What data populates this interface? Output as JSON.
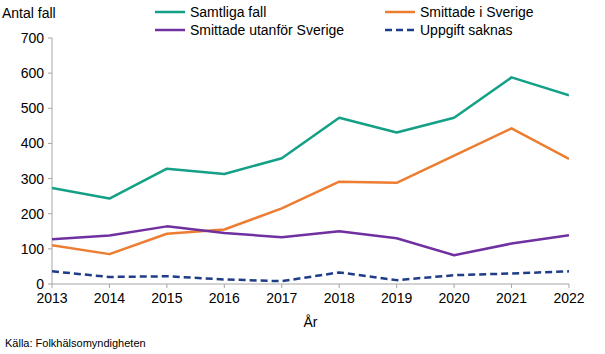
{
  "chart_data": {
    "type": "line",
    "y_label": "Antal fall",
    "x_label": "År",
    "source": "Källa: Folkhälsomyndigheten",
    "x": [
      2013,
      2014,
      2015,
      2016,
      2017,
      2018,
      2019,
      2020,
      2021,
      2022
    ],
    "xlim": [
      2013,
      2022
    ],
    "xticks": [
      2013,
      2014,
      2015,
      2016,
      2017,
      2018,
      2019,
      2020,
      2021,
      2022
    ],
    "ylim": [
      0,
      700
    ],
    "yticks": [
      0,
      100,
      200,
      300,
      400,
      500,
      600,
      700
    ],
    "grid": false,
    "legend": "top",
    "series": [
      {
        "name": "Samtliga fall",
        "color": "#13a086",
        "line_style": "solid",
        "values": [
          273,
          243,
          328,
          313,
          358,
          473,
          431,
          473,
          588,
          537
        ]
      },
      {
        "name": "Smittade i Sverige",
        "color": "#ed7d31",
        "line_style": "solid",
        "values": [
          110,
          85,
          143,
          155,
          215,
          291,
          288,
          365,
          443,
          356
        ]
      },
      {
        "name": "Smittade utanför Sverige",
        "color": "#7030a0",
        "line_style": "solid",
        "values": [
          127,
          138,
          164,
          145,
          133,
          150,
          130,
          82,
          115,
          139
        ]
      },
      {
        "name": "Uppgift saknas",
        "color": "#1f3c88",
        "line_style": "dashed",
        "values": [
          36,
          20,
          22,
          13,
          8,
          33,
          11,
          25,
          30,
          36
        ]
      }
    ]
  }
}
